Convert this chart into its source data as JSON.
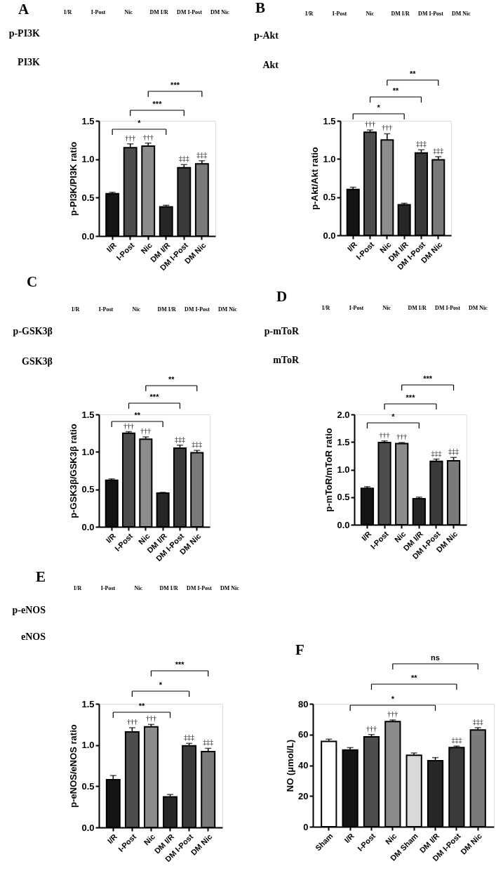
{
  "chart_data": [
    {
      "type": "other",
      "title": "A",
      "categories": [
        "I/R",
        "I-Post",
        "Nic",
        "DM I/R",
        "DM I-Post",
        "DM Nic"
      ],
      "y_categories": [
        "p-PI3K",
        "PI3K"
      ]
    },
    {
      "type": "bar",
      "ylabel": "p-PI3K/PI3K ratio",
      "categories": [
        "I/R",
        "I-Post",
        "Nic",
        "DM I/R",
        "DM I-Post",
        "DM Nic"
      ],
      "values": [
        0.55,
        1.15,
        1.17,
        0.38,
        0.89,
        0.94
      ],
      "errors": [
        0.02,
        0.05,
        0.04,
        0.02,
        0.04,
        0.04
      ],
      "colors": [
        "#141414",
        "#4d4d4d",
        "#8c8c8c",
        "#262626",
        "#3a3a3a",
        "#7a7a7a"
      ],
      "ylim": [
        0,
        1.5
      ],
      "yticks": [
        {
          "value": 0,
          "label": "0.0"
        },
        0.5,
        {
          "value": 1,
          "label": "1.0"
        },
        1.5
      ],
      "annotations": [
        "*",
        "***",
        "***",
        {
          "text": "†††",
          "x": "I-Post",
          "y": 1.15
        },
        {
          "text": "†††",
          "x": "Nic",
          "y": 1.17
        },
        {
          "text": "‡‡‡",
          "x": "DM I-Post",
          "y": 0.89
        },
        {
          "text": "‡‡‡",
          "x": "DM Nic",
          "y": 0.94
        }
      ]
    },
    {
      "type": "other",
      "title": "B",
      "categories": [
        "I/R",
        "I-Post",
        "Nic",
        "DM I/R",
        "DM I-Post",
        "DM Nic"
      ],
      "y_categories": [
        "p-Akt",
        "Akt"
      ]
    },
    {
      "type": "bar",
      "ylabel": "p-Akt/Akt ratio",
      "categories": [
        "I/R",
        "I-Post",
        "Nic",
        "DM I/R",
        "DM I-Post",
        "DM Nic"
      ],
      "values": [
        0.6,
        1.35,
        1.25,
        0.4,
        1.08,
        0.99
      ],
      "errors": [
        0.03,
        0.03,
        0.08,
        0.02,
        0.04,
        0.04
      ],
      "colors": [
        "#141414",
        "#4d4d4d",
        "#8c8c8c",
        "#262626",
        "#3a3a3a",
        "#7a7a7a"
      ],
      "ylim": [
        0,
        1.5
      ],
      "yticks": [
        {
          "value": 0,
          "label": "0.0"
        },
        0.5,
        {
          "value": 1,
          "label": "1.0"
        },
        1.5
      ],
      "annotations": [
        "*",
        "**",
        "**",
        {
          "text": "†††",
          "x": "I-Post",
          "y": 1.35
        },
        {
          "text": "†††",
          "x": "Nic",
          "y": 1.25
        },
        {
          "text": "‡‡‡",
          "x": "DM I-Post",
          "y": 1.08
        },
        {
          "text": "‡‡‡",
          "x": "DM Nic",
          "y": 0.99
        }
      ]
    },
    {
      "type": "other",
      "title": "C",
      "categories": [
        "I/R",
        "I-Post",
        "Nic",
        "DM I/R",
        "DM I-Post",
        "DM Nic"
      ],
      "y_categories": [
        "p-GSK3β",
        "GSK3β"
      ]
    },
    {
      "type": "bar",
      "ylabel": "p-GSK3β/GSK3β ratio",
      "categories": [
        "I/R",
        "I-Post",
        "Nic",
        "DM I/R",
        "DM I-Post",
        "DM Nic"
      ],
      "values": [
        0.62,
        1.25,
        1.17,
        0.45,
        1.05,
        0.99
      ],
      "errors": [
        0.02,
        0.02,
        0.03,
        0.01,
        0.04,
        0.03
      ],
      "colors": [
        "#141414",
        "#4d4d4d",
        "#8c8c8c",
        "#262626",
        "#3a3a3a",
        "#7a7a7a"
      ],
      "ylim": [
        0,
        1.5
      ],
      "yticks": [
        {
          "value": 0,
          "label": "0.0"
        },
        0.5,
        {
          "value": 1,
          "label": "1.0"
        },
        1.5
      ],
      "annotations": [
        "**",
        "***",
        "**",
        {
          "text": "†††",
          "x": "I-Post",
          "y": 1.25
        },
        {
          "text": "†††",
          "x": "Nic",
          "y": 1.17
        },
        {
          "text": "‡‡‡",
          "x": "DM I-Post",
          "y": 1.05
        },
        {
          "text": "‡‡‡",
          "x": "DM Nic",
          "y": 0.99
        }
      ]
    },
    {
      "type": "other",
      "title": "D",
      "categories": [
        "I/R",
        "I-Post",
        "Nic",
        "DM I/R",
        "DM I-Post",
        "DM Nic"
      ],
      "y_categories": [
        "p-mToR",
        "mToR"
      ]
    },
    {
      "type": "bar",
      "ylabel": "p-mToR/mToR ratio",
      "categories": [
        "I/R",
        "I-Post",
        "Nic",
        "DM I/R",
        "DM I-Post",
        "DM Nic"
      ],
      "values": [
        0.66,
        1.49,
        1.47,
        0.47,
        1.15,
        1.16
      ],
      "errors": [
        0.03,
        0.03,
        0.02,
        0.03,
        0.04,
        0.06
      ],
      "colors": [
        "#141414",
        "#4d4d4d",
        "#8c8c8c",
        "#262626",
        "#3a3a3a",
        "#7a7a7a"
      ],
      "ylim": [
        0,
        2
      ],
      "yticks": [
        {
          "value": 0,
          "label": "0.0"
        },
        0.5,
        {
          "value": 1,
          "label": "1.0"
        },
        1.5,
        {
          "value": 2,
          "label": "2.0"
        }
      ],
      "annotations": [
        "*",
        "***",
        "***",
        {
          "text": "†††",
          "x": "I-Post",
          "y": 1.49
        },
        {
          "text": "†††",
          "x": "Nic",
          "y": 1.47
        },
        {
          "text": "‡‡‡",
          "x": "DM I-Post",
          "y": 1.15
        },
        {
          "text": "‡‡‡",
          "x": "DM Nic",
          "y": 1.16
        }
      ]
    },
    {
      "type": "other",
      "title": "E",
      "categories": [
        "I/R",
        "I-Post",
        "Nic",
        "DM I/R",
        "DM I-Post",
        "DM Nic"
      ],
      "y_categories": [
        "p-eNOS",
        "eNOS"
      ]
    },
    {
      "type": "bar",
      "ylabel": "p-eNOS/eNOS ratio",
      "categories": [
        "I/R",
        "I-Post",
        "Nic",
        "DM I/R",
        "DM I-Post",
        "DM Nic"
      ],
      "values": [
        0.58,
        1.16,
        1.22,
        0.37,
        0.99,
        0.92
      ],
      "errors": [
        0.05,
        0.05,
        0.03,
        0.03,
        0.03,
        0.04
      ],
      "colors": [
        "#141414",
        "#4d4d4d",
        "#8c8c8c",
        "#262626",
        "#3a3a3a",
        "#7a7a7a"
      ],
      "ylim": [
        0,
        1.5
      ],
      "yticks": [
        {
          "value": 0,
          "label": "0.0"
        },
        0.5,
        {
          "value": 1,
          "label": "1.0"
        },
        1.5
      ],
      "annotations": [
        "**",
        "*",
        "***",
        {
          "text": "†††",
          "x": "I-Post",
          "y": 1.16
        },
        {
          "text": "†††",
          "x": "Nic",
          "y": 1.22
        },
        {
          "text": "‡‡‡",
          "x": "DM I-Post",
          "y": 0.99
        },
        {
          "text": "‡‡‡",
          "x": "DM Nic",
          "y": 0.92
        }
      ]
    },
    {
      "type": "bar",
      "title": "F",
      "ylabel": "NO (μmol/L)",
      "categories": [
        "Sham",
        "I/R",
        "I-Post",
        "Nic",
        "DM Sham",
        "DM I/R",
        "DM I-Post",
        "DM Nic"
      ],
      "values": [
        55.5,
        50,
        58.5,
        68.5,
        46.5,
        43,
        51.5,
        63
      ],
      "errors": [
        1.5,
        1.5,
        1.5,
        1,
        1.5,
        2,
        1,
        1.5
      ],
      "colors": [
        "#ffffff",
        "#141414",
        "#4d4d4d",
        "#8c8c8c",
        "#d9d9d9",
        "#262626",
        "#3a3a3a",
        "#7a7a7a"
      ],
      "ylim": [
        0,
        80
      ],
      "yticks": [
        0,
        20,
        40,
        60,
        80
      ],
      "annotations": [
        "*",
        "**",
        "ns",
        {
          "text": "†††",
          "x": "I-Post",
          "y": 58.5
        },
        {
          "text": "†††",
          "x": "Nic",
          "y": 68.5
        },
        {
          "text": "‡‡‡",
          "x": "DM I-Post",
          "y": 51.5
        },
        {
          "text": "‡‡‡",
          "x": "DM Nic",
          "y": 63
        }
      ]
    }
  ]
}
